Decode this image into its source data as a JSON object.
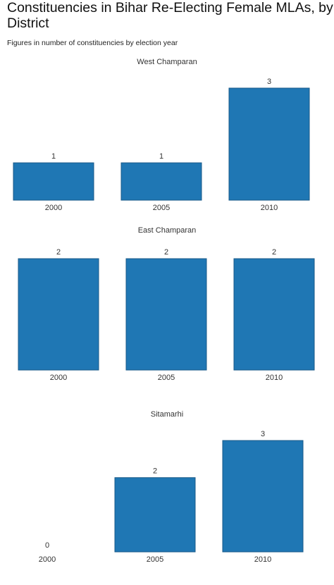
{
  "header": {
    "title": "Constituencies in Bihar Re-Electing Female MLAs, by District",
    "subtitle": "Figures in number of constituencies by election year"
  },
  "chart_data": [
    {
      "type": "bar",
      "title": "West Champaran",
      "categories": [
        "2000",
        "2005",
        "2010"
      ],
      "values": [
        1,
        1,
        3
      ],
      "color": "#1f77b4"
    },
    {
      "type": "bar",
      "title": "East Champaran",
      "categories": [
        "2000",
        "2005",
        "2010"
      ],
      "values": [
        2,
        2,
        2
      ],
      "color": "#1f77b4"
    },
    {
      "type": "bar",
      "title": "Sitamarhi",
      "categories": [
        "2000",
        "2005",
        "2010"
      ],
      "values": [
        0,
        2,
        3
      ],
      "color": "#1f77b4"
    }
  ]
}
